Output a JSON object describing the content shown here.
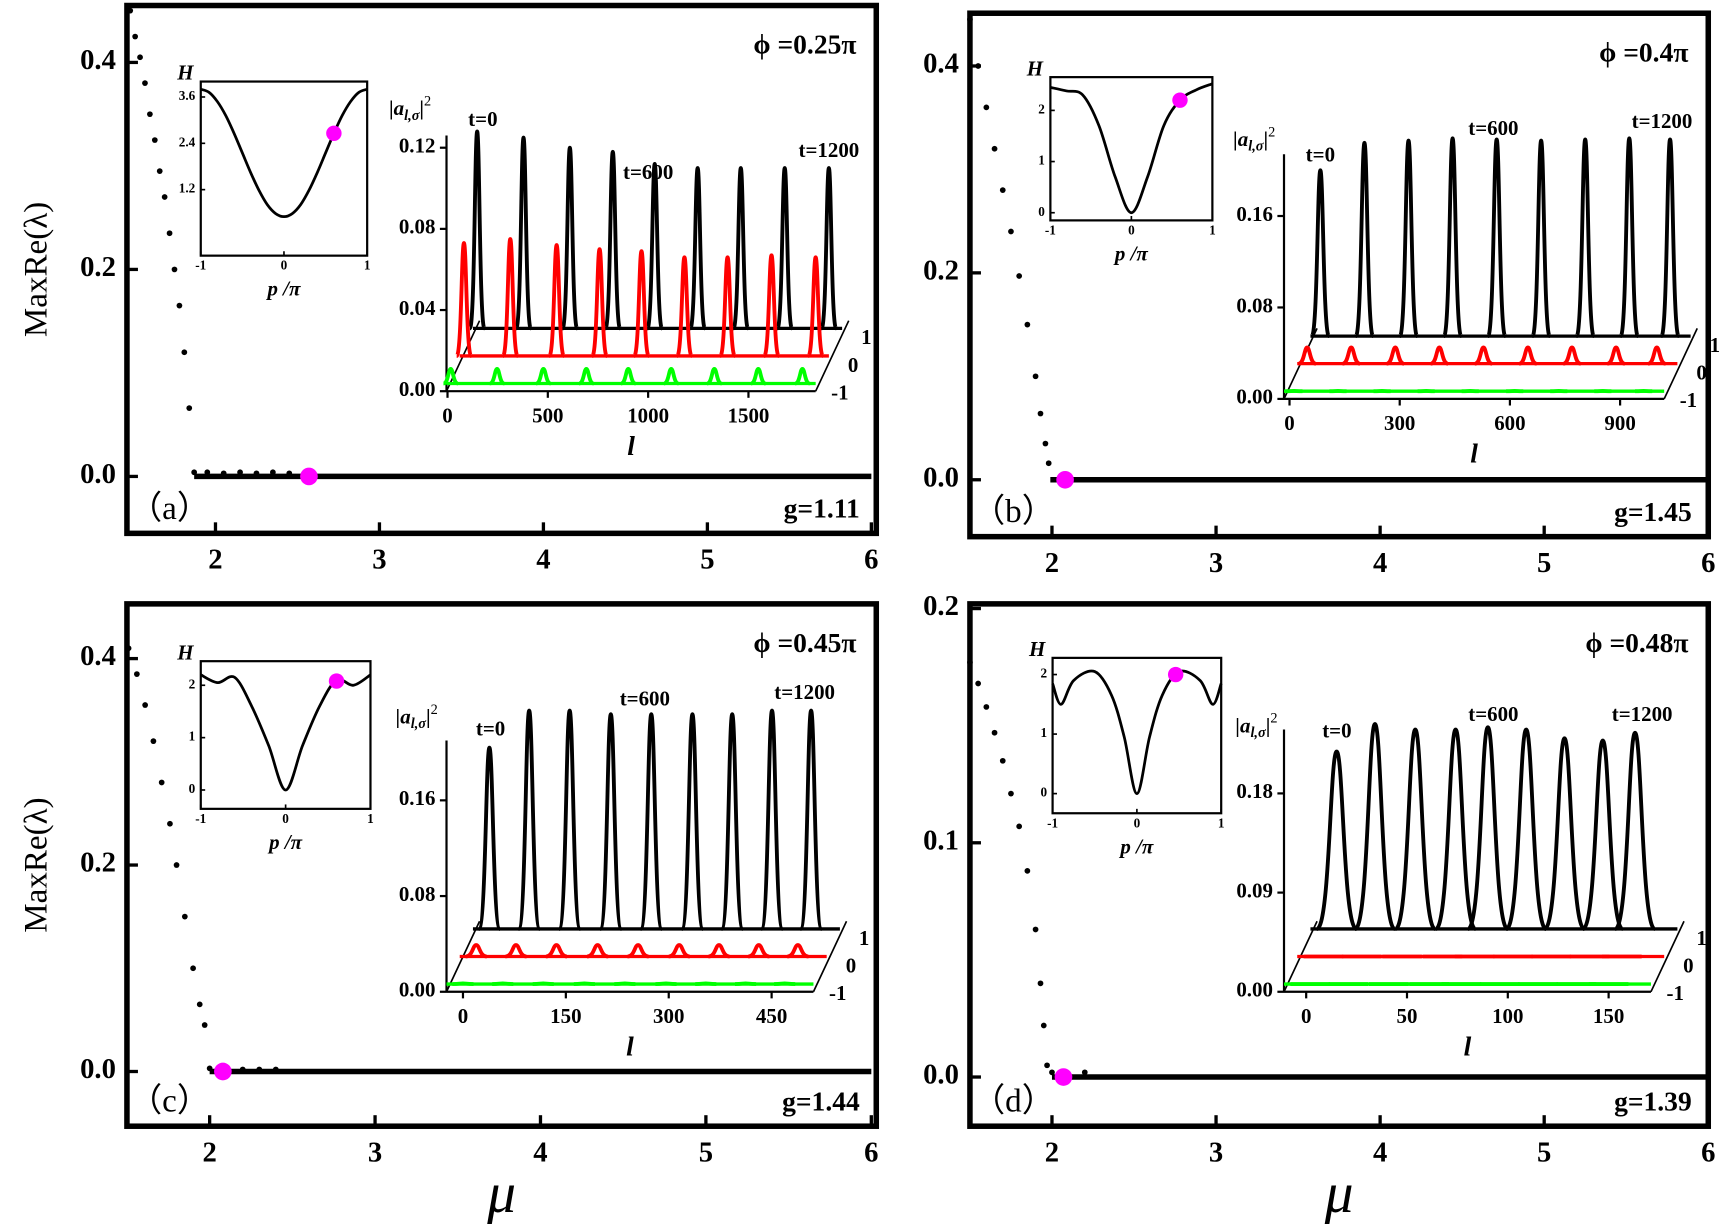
{
  "chart_data": [
    {
      "type": "scatter",
      "label": "（a）",
      "annotations": [
        "ϕ =0.25π",
        "g=1.11"
      ],
      "ylabel": "MaxRe(λ)",
      "xlim": [
        1.46,
        6.03
      ],
      "ylim": [
        -0.055,
        0.455
      ],
      "xticks": [
        2,
        3,
        4,
        5,
        6
      ],
      "yticks": [
        {
          "value": 0,
          "label": "0.0"
        },
        0.2,
        0.4
      ],
      "series": [
        {
          "mode": "dots",
          "color": "#000000",
          "x": [
            1.48,
            1.51,
            1.54,
            1.57,
            1.6,
            1.63,
            1.66,
            1.69,
            1.72,
            1.75,
            1.78,
            1.81,
            1.84,
            1.87,
            1.95,
            2.05,
            2.15,
            2.25,
            2.35,
            2.45
          ],
          "values": [
            0.45,
            0.425,
            0.405,
            0.38,
            0.35,
            0.325,
            0.295,
            0.27,
            0.235,
            0.2,
            0.165,
            0.12,
            0.066,
            0.004,
            0.004,
            0.003,
            0.004,
            0.003,
            0.004,
            0.003
          ]
        },
        {
          "mode": "line",
          "color": "#000000",
          "x": [
            1.87,
            6
          ],
          "values": [
            0,
            0
          ]
        },
        {
          "mode": "marker",
          "color": "#ff00ff",
          "x": [
            2.57
          ],
          "values": [
            0
          ]
        }
      ],
      "insets": [
        {
          "type": "line",
          "ylabel": "H",
          "xlabel": "p /π",
          "xlim": [
            -1,
            1
          ],
          "ylim": [
            -0.51,
            4.0
          ],
          "xticks": [
            -1,
            0,
            1
          ],
          "yticks": [
            1.2,
            2.4,
            3.6
          ],
          "series": [
            {
              "mode": "line",
              "color": "#000000",
              "x": [
                -1,
                -0.9,
                -0.8,
                -0.7,
                -0.6,
                -0.5,
                -0.4,
                -0.3,
                -0.2,
                -0.1,
                0,
                0.1,
                0.2,
                0.3,
                0.4,
                0.5,
                0.6,
                0.7,
                0.8,
                0.9,
                1
              ],
              "values": [
                3.8,
                3.72,
                3.48,
                3.12,
                2.66,
                2.15,
                1.64,
                1.18,
                0.81,
                0.58,
                0.5,
                0.58,
                0.81,
                1.18,
                1.64,
                2.15,
                2.66,
                3.12,
                3.48,
                3.72,
                3.8
              ]
            },
            {
              "mode": "marker",
              "color": "#ff00ff",
              "x": [
                0.6
              ],
              "values": [
                2.66
              ]
            }
          ]
        },
        {
          "type": "waterfall",
          "ylabel": {
            "base": "|a",
            "sub": "l,σ",
            "close": "|",
            "sup": "2"
          },
          "xlabel": "l",
          "annotations": [
            "t=0",
            "t=600",
            "t=1200"
          ],
          "xlim": [
            -5,
            1835
          ],
          "ylim": [
            0,
            0.126
          ],
          "xticks": [
            0,
            500,
            1000,
            1500
          ],
          "yticks": [
            {
              "value": 0,
              "label": "0.00"
            },
            0.04,
            0.08,
            0.12
          ],
          "x": [
            16,
            247,
            478,
            692,
            901,
            1115,
            1330,
            1549,
            1769
          ],
          "series": [
            {
              "name": "1",
              "color": "#000000",
              "values": [
                0.128,
                0.125,
                0.12,
                0.118,
                0.112,
                0.11,
                0.11,
                0.11,
                0.11
              ]
            },
            {
              "name": "0",
              "color": "#ff0000",
              "values": [
                0.073,
                0.075,
                0.072,
                0.07,
                0.069,
                0.066,
                0.066,
                0.067,
                0.066
              ]
            },
            {
              "name": "-1",
              "color": "#00ff00",
              "values": [
                0.011,
                0.011,
                0.011,
                0.011,
                0.011,
                0.011,
                0.011,
                0.011,
                0.011
              ]
            }
          ]
        }
      ]
    },
    {
      "type": "scatter",
      "label": "（b）",
      "annotations": [
        "ϕ =0.4π",
        "g=1.45"
      ],
      "xlim": [
        1.5,
        6
      ],
      "ylim": [
        -0.055,
        0.451
      ],
      "xticks": [
        2,
        3,
        4,
        5,
        6
      ],
      "yticks": [
        {
          "value": 0,
          "label": "0.0"
        },
        0.2,
        0.4
      ],
      "series": [
        {
          "mode": "dots",
          "color": "#000000",
          "x": [
            1.5,
            1.55,
            1.6,
            1.65,
            1.7,
            1.75,
            1.8,
            1.85,
            1.9,
            1.93,
            1.96,
            1.98
          ],
          "values": [
            0.445,
            0.4,
            0.36,
            0.32,
            0.28,
            0.24,
            0.197,
            0.15,
            0.1,
            0.064,
            0.035,
            0.016
          ]
        },
        {
          "mode": "line",
          "color": "#000000",
          "x": [
            1.99,
            6
          ],
          "values": [
            0,
            0
          ]
        },
        {
          "mode": "marker",
          "color": "#ff00ff",
          "x": [
            2.08
          ],
          "values": [
            0
          ]
        }
      ],
      "insets": [
        {
          "type": "line",
          "ylabel": "H",
          "xlabel": "p /π",
          "xlim": [
            -1,
            1
          ],
          "ylim": [
            -0.15,
            2.65
          ],
          "xticks": [
            -1,
            0,
            1
          ],
          "yticks": [
            0,
            1,
            2
          ],
          "series": [
            {
              "mode": "line",
              "color": "#000000",
              "x": [
                -1,
                -0.8,
                -0.6,
                -0.4,
                -0.2,
                0,
                0.2,
                0.4,
                0.6,
                0.8,
                1
              ],
              "values": [
                2.45,
                2.38,
                2.3,
                1.7,
                0.7,
                0,
                0.7,
                1.7,
                2.2,
                2.4,
                2.52
              ]
            },
            {
              "mode": "marker",
              "color": "#ff00ff",
              "x": [
                0.6
              ],
              "values": [
                2.2
              ]
            }
          ]
        },
        {
          "type": "waterfall",
          "ylabel": {
            "base": "|a",
            "sub": "l,σ",
            "close": "|",
            "sup": "2"
          },
          "xlabel": "l",
          "annotations": [
            "t=0",
            "t=600",
            "t=1200"
          ],
          "xlim": [
            -15,
            1020
          ],
          "ylim": [
            0,
            0.214
          ],
          "xticks": [
            0,
            300,
            600,
            900
          ],
          "yticks": [
            {
              "value": 0,
              "label": "0.00"
            },
            0.08,
            0.16
          ],
          "x": [
            12,
            132,
            252,
            372,
            492,
            613,
            733,
            853,
            964
          ],
          "series": [
            {
              "name": "1",
              "color": "#000000",
              "values": [
                0.2,
                0.224,
                0.226,
                0.228,
                0.227,
                0.226,
                0.227,
                0.228,
                0.227
              ]
            },
            {
              "name": "0",
              "color": "#ff0000",
              "values": [
                0.045,
                0.045,
                0.045,
                0.045,
                0.045,
                0.045,
                0.045,
                0.045,
                0.045
              ]
            },
            {
              "name": "-1",
              "color": "#00ff00",
              "values": [
                0.007,
                0.007,
                0.007,
                0.007,
                0.007,
                0.007,
                0.007,
                0.007,
                0.007
              ]
            }
          ]
        }
      ]
    },
    {
      "type": "scatter",
      "label": "（c）",
      "annotations": [
        "ϕ =0.45π",
        "g=1.44"
      ],
      "ylabel": "MaxRe(λ)",
      "xlabel": "μ",
      "xlim": [
        1.5,
        6.03
      ],
      "ylim": [
        -0.053,
        0.453
      ],
      "xticks": [
        2,
        3,
        4,
        5,
        6
      ],
      "yticks": [
        {
          "value": 0,
          "label": "0.0"
        },
        0.2,
        0.4
      ],
      "series": [
        {
          "mode": "dots",
          "color": "#000000",
          "x": [
            1.51,
            1.56,
            1.61,
            1.66,
            1.71,
            1.76,
            1.8,
            1.85,
            1.9,
            1.94,
            1.97,
            2.0,
            2.1,
            2.2,
            2.3,
            2.4
          ],
          "values": [
            0.41,
            0.385,
            0.355,
            0.32,
            0.28,
            0.24,
            0.2,
            0.15,
            0.1,
            0.065,
            0.045,
            0.003,
            0.003,
            0.002,
            0.002,
            0.002
          ]
        },
        {
          "mode": "line",
          "color": "#000000",
          "x": [
            2.0,
            6
          ],
          "values": [
            0,
            0
          ]
        },
        {
          "mode": "marker",
          "color": "#ff00ff",
          "x": [
            2.08
          ],
          "values": [
            0
          ]
        }
      ],
      "insets": [
        {
          "type": "line",
          "ylabel": "H",
          "xlabel": "p /π",
          "xlim": [
            -1,
            1
          ],
          "ylim": [
            -0.36,
            2.46
          ],
          "xticks": [
            -1,
            0,
            1
          ],
          "yticks": [
            0,
            1,
            2
          ],
          "series": [
            {
              "mode": "line",
              "color": "#000000",
              "x": [
                -1,
                -0.8,
                -0.6,
                -0.4,
                -0.2,
                0,
                0.2,
                0.4,
                0.6,
                0.8,
                1
              ],
              "values": [
                2.2,
                2.05,
                2.15,
                1.6,
                0.85,
                0,
                0.85,
                1.6,
                2.1,
                2.0,
                2.2
              ]
            },
            {
              "mode": "marker",
              "color": "#ff00ff",
              "x": [
                0.6
              ],
              "values": [
                2.08
              ]
            }
          ]
        },
        {
          "type": "waterfall",
          "ylabel": {
            "base": "|a",
            "sub": "l,σ",
            "close": "|",
            "sup": "2"
          },
          "xlabel": "l",
          "annotations": [
            "t=0",
            "t=600",
            "t=1200"
          ],
          "xlim": [
            -24,
            511
          ],
          "ylim": [
            0,
            0.21
          ],
          "xticks": [
            0,
            150,
            300,
            450
          ],
          "yticks": [
            {
              "value": 0,
              "label": "0.00"
            },
            0.08,
            0.16
          ],
          "x": [
            0,
            58,
            117,
            177,
            236,
            296,
            354,
            412,
            469
          ],
          "series": [
            {
              "name": "1",
              "color": "#000000",
              "values": [
                0.204,
                0.235,
                0.235,
                0.232,
                0.232,
                0.232,
                0.232,
                0.235,
                0.235
              ]
            },
            {
              "name": "0",
              "color": "#ff0000",
              "values": [
                0.039,
                0.039,
                0.039,
                0.039,
                0.039,
                0.039,
                0.039,
                0.039,
                0.039
              ]
            },
            {
              "name": "-1",
              "color": "#00ff00",
              "values": [
                0.007,
                0.007,
                0.007,
                0.007,
                0.007,
                0.007,
                0.007,
                0.007,
                0.007
              ]
            }
          ]
        }
      ]
    },
    {
      "type": "scatter",
      "label": "（d）",
      "annotations": [
        "ϕ =0.48π",
        "g=1.39"
      ],
      "xlabel": "μ",
      "xlim": [
        1.5,
        6
      ],
      "ylim": [
        -0.021,
        0.202
      ],
      "xticks": [
        2,
        3,
        4,
        5,
        6
      ],
      "yticks": [
        {
          "value": 0,
          "label": "0.0"
        },
        0.1,
        0.2
      ],
      "series": [
        {
          "mode": "dots",
          "color": "#000000",
          "x": [
            1.5,
            1.55,
            1.6,
            1.65,
            1.7,
            1.75,
            1.8,
            1.85,
            1.9,
            1.93,
            1.95,
            1.97,
            2.0,
            2.2
          ],
          "values": [
            0.177,
            0.168,
            0.158,
            0.147,
            0.135,
            0.121,
            0.107,
            0.088,
            0.063,
            0.04,
            0.022,
            0.005,
            0.002,
            0.002
          ]
        },
        {
          "mode": "line",
          "color": "#000000",
          "x": [
            2.0,
            6
          ],
          "values": [
            0,
            0
          ]
        },
        {
          "mode": "marker",
          "color": "#ff00ff",
          "x": [
            2.07
          ],
          "values": [
            0
          ]
        }
      ],
      "insets": [
        {
          "type": "line",
          "ylabel": "H",
          "xlabel": "p /π",
          "xlim": [
            -1,
            1
          ],
          "ylim": [
            -0.33,
            2.28
          ],
          "xticks": [
            -1,
            0,
            1
          ],
          "yticks": [
            0,
            1,
            2
          ],
          "series": [
            {
              "mode": "line",
              "color": "#000000",
              "x": [
                -1,
                -0.9,
                -0.75,
                -0.5,
                -0.3,
                -0.15,
                0,
                0.15,
                0.3,
                0.5,
                0.75,
                0.9,
                1
              ],
              "values": [
                1.85,
                1.5,
                1.9,
                2.05,
                1.65,
                0.95,
                0,
                0.95,
                1.65,
                2.05,
                1.9,
                1.5,
                1.85
              ]
            },
            {
              "mode": "marker",
              "color": "#ff00ff",
              "x": [
                0.46
              ],
              "values": [
                2.0
              ]
            }
          ]
        },
        {
          "type": "waterfall",
          "ylabel": {
            "base": "|a",
            "sub": "l,σ",
            "close": "|",
            "sup": "2"
          },
          "xlabel": "l",
          "annotations": [
            "t=0",
            "t=600",
            "t=1200"
          ],
          "xlim": [
            -11,
            171
          ],
          "ylim": [
            0,
            0.238
          ],
          "xticks": [
            0,
            50,
            100,
            150
          ],
          "yticks": [
            {
              "value": 0,
              "label": "0.00"
            },
            0.09,
            0.18
          ],
          "x": [
            2,
            21,
            41,
            61,
            77,
            96,
            115,
            134,
            150
          ],
          "series": [
            {
              "name": "1",
              "color": "#000000",
              "values": [
                0.218,
                0.243,
                0.238,
                0.238,
                0.24,
                0.238,
                0.23,
                0.228,
                0.235
              ]
            },
            {
              "name": "0",
              "color": "#ff0000",
              "values": [
                0.032,
                0.032,
                0.032,
                0.032,
                0.032,
                0.032,
                0.032,
                0.032,
                0.032
              ]
            },
            {
              "name": "-1",
              "color": "#00ff00",
              "values": [
                0.007,
                0.007,
                0.007,
                0.007,
                0.007,
                0.007,
                0.007,
                0.007,
                0.007
              ]
            }
          ]
        }
      ]
    }
  ]
}
